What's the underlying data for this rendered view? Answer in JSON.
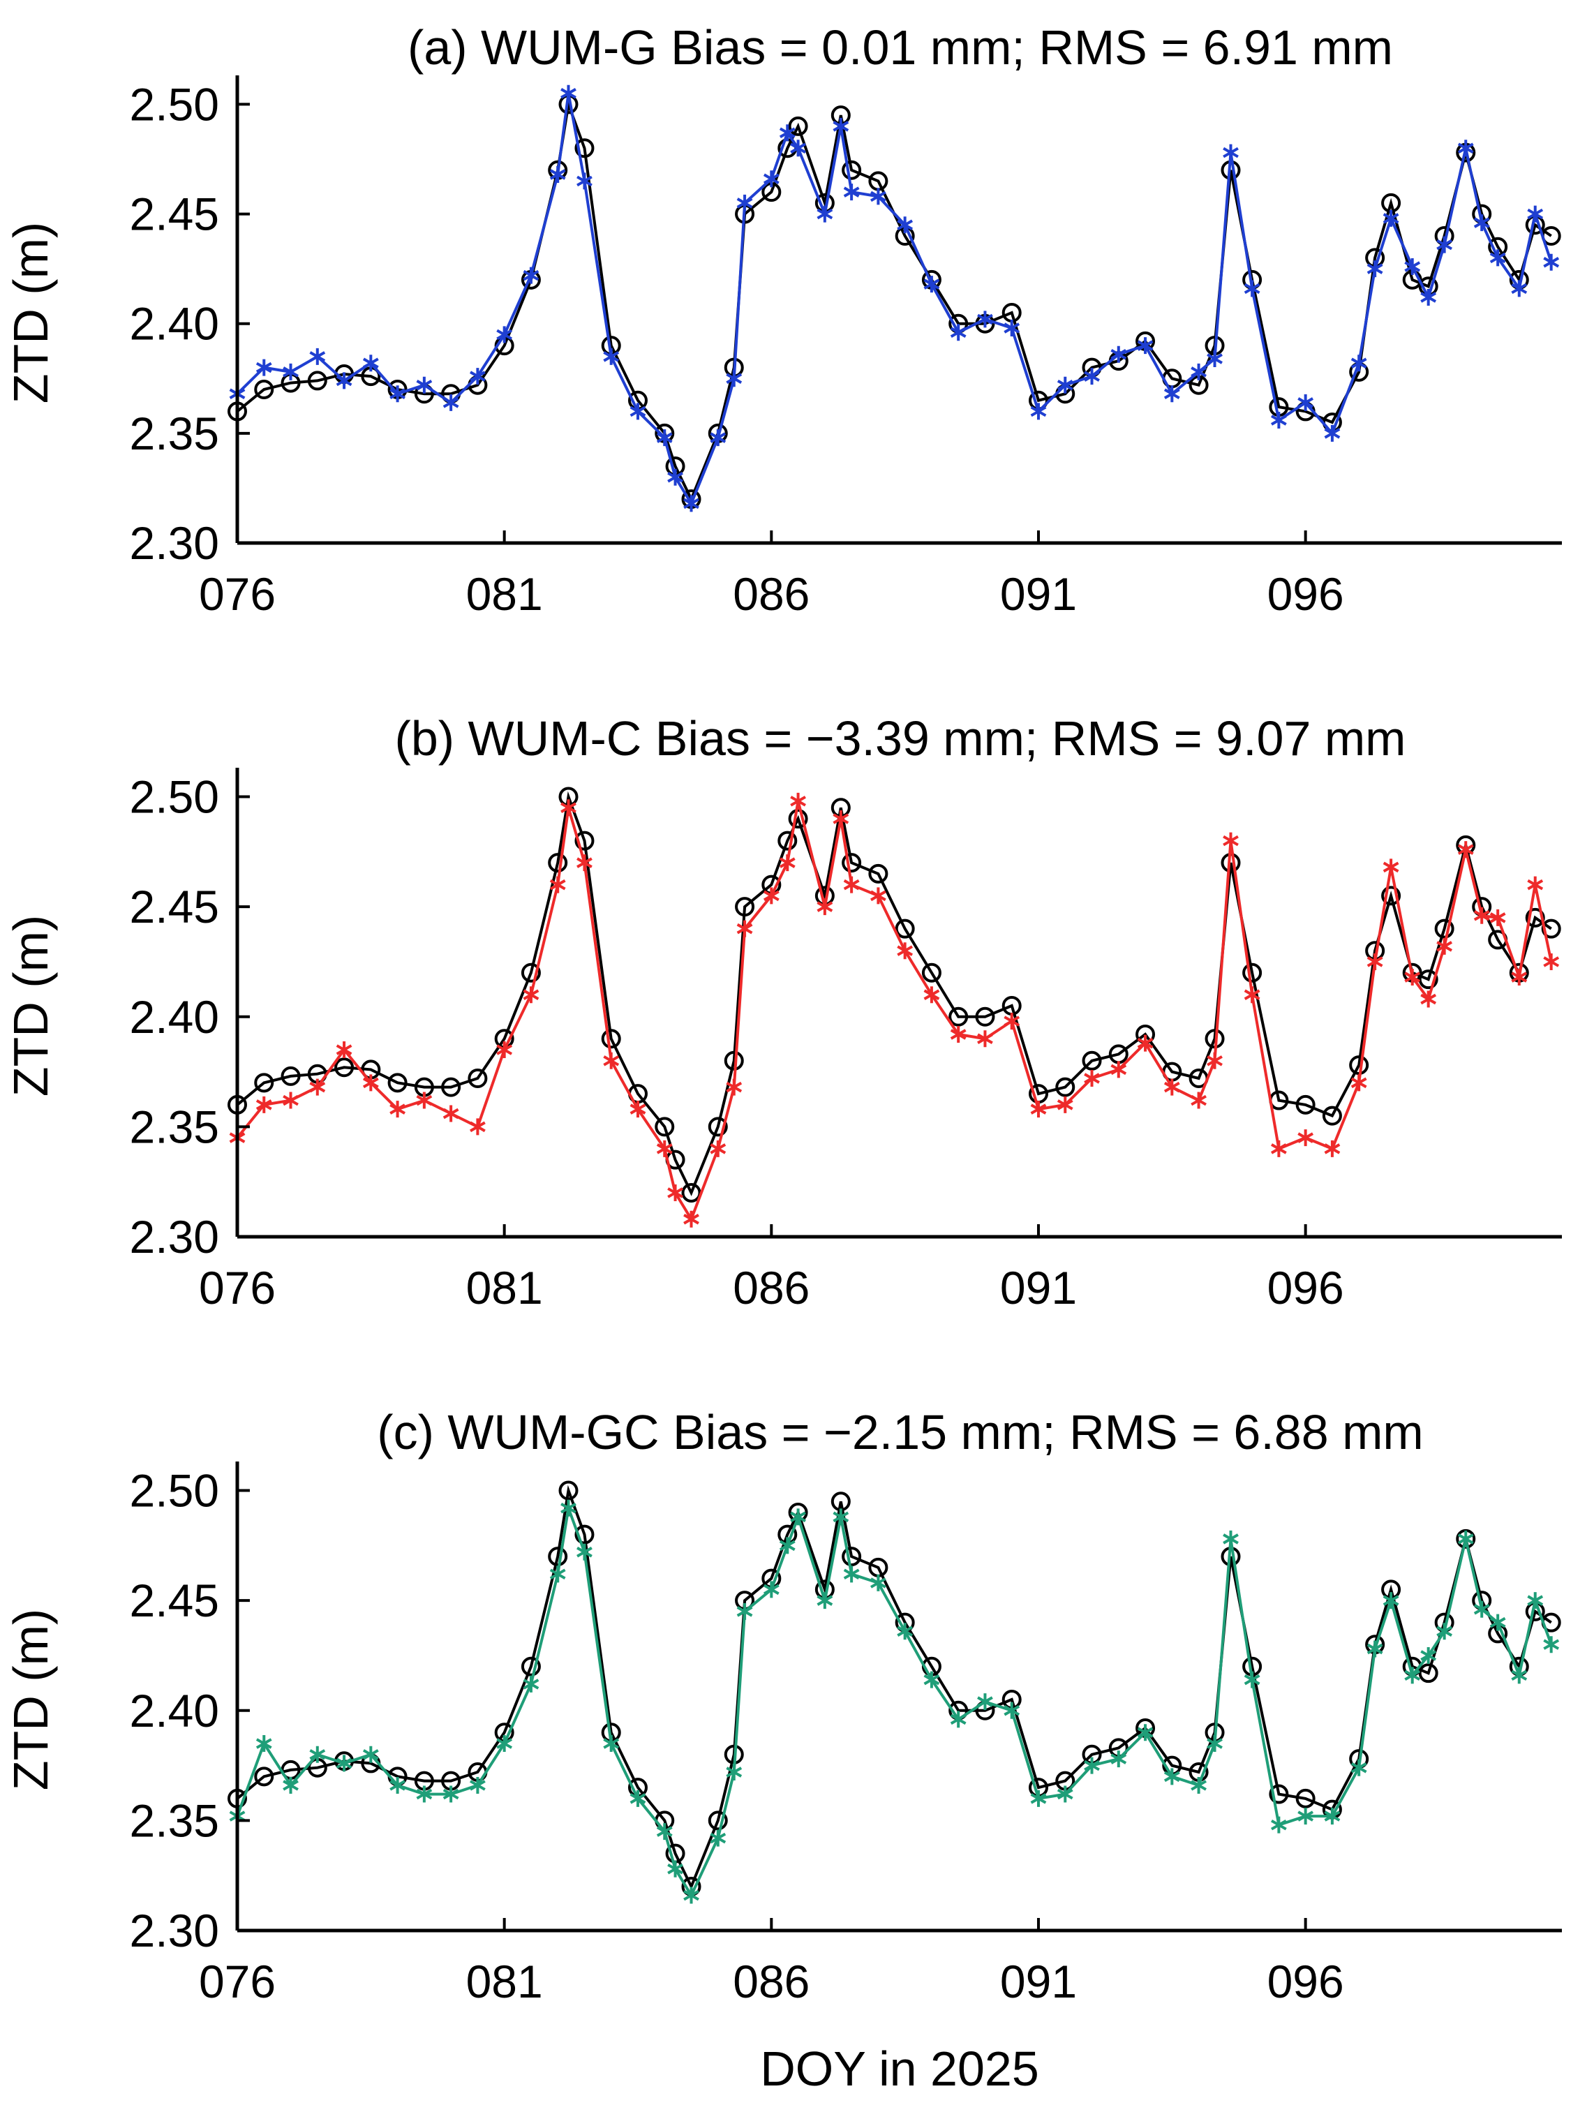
{
  "figure": {
    "xlabel_shared": "DOY in 2025"
  },
  "chart_data": [
    {
      "type": "line",
      "title": "(a) WUM-G Bias = 0.01 mm; RMS = 6.91 mm",
      "xlabel": "",
      "ylabel": "ZTD (m)",
      "xlim": [
        76,
        100.8
      ],
      "ylim": [
        2.3,
        2.51
      ],
      "xticks": [
        76,
        81,
        86,
        91,
        96
      ],
      "xtick_labels": [
        "076",
        "081",
        "086",
        "091",
        "096"
      ],
      "yticks": [
        2.3,
        2.35,
        2.4,
        2.45,
        2.5
      ],
      "ytick_labels": [
        "2.30",
        "2.35",
        "2.40",
        "2.45",
        "2.50"
      ],
      "grid": false,
      "series_colors": [
        "#000000",
        "#1f3fd1"
      ],
      "series": [
        {
          "name": "",
          "marker": "circle",
          "color": "#000000",
          "x": [
            76.0,
            76.5,
            77.0,
            77.5,
            78.0,
            78.5,
            79.0,
            79.5,
            80.0,
            80.5,
            81.0,
            81.5,
            82.0,
            82.2,
            82.5,
            83.0,
            83.5,
            84.0,
            84.2,
            84.5,
            85.0,
            85.3,
            85.5,
            86.0,
            86.3,
            86.5,
            87.0,
            87.3,
            87.5,
            88.0,
            88.5,
            89.0,
            89.5,
            90.0,
            90.5,
            91.0,
            91.5,
            92.0,
            92.5,
            93.0,
            93.5,
            94.0,
            94.3,
            94.6,
            95.0,
            95.5,
            96.0,
            96.5,
            97.0,
            97.3,
            97.6,
            98.0,
            98.3,
            98.6,
            99.0,
            99.3,
            99.6,
            100.0,
            100.3,
            100.6
          ],
          "y": [
            2.36,
            2.37,
            2.373,
            2.374,
            2.377,
            2.376,
            2.37,
            2.368,
            2.368,
            2.372,
            2.39,
            2.42,
            2.47,
            2.5,
            2.48,
            2.39,
            2.365,
            2.35,
            2.335,
            2.32,
            2.35,
            2.38,
            2.45,
            2.46,
            2.48,
            2.49,
            2.455,
            2.495,
            2.47,
            2.465,
            2.44,
            2.42,
            2.4,
            2.4,
            2.405,
            2.365,
            2.368,
            2.38,
            2.383,
            2.392,
            2.375,
            2.372,
            2.39,
            2.47,
            2.42,
            2.362,
            2.36,
            2.355,
            2.378,
            2.43,
            2.455,
            2.42,
            2.417,
            2.44,
            2.478,
            2.45,
            2.435,
            2.42,
            2.445,
            2.44
          ]
        },
        {
          "name": "",
          "marker": "asterisk",
          "color": "#1f3fd1",
          "x": [
            76.0,
            76.5,
            77.0,
            77.5,
            78.0,
            78.5,
            79.0,
            79.5,
            80.0,
            80.5,
            81.0,
            81.5,
            82.0,
            82.2,
            82.5,
            83.0,
            83.5,
            84.0,
            84.2,
            84.5,
            85.0,
            85.3,
            85.5,
            86.0,
            86.3,
            86.5,
            87.0,
            87.3,
            87.5,
            88.0,
            88.5,
            89.0,
            89.5,
            90.0,
            90.5,
            91.0,
            91.5,
            92.0,
            92.5,
            93.0,
            93.5,
            94.0,
            94.3,
            94.6,
            95.0,
            95.5,
            96.0,
            96.5,
            97.0,
            97.3,
            97.6,
            98.0,
            98.3,
            98.6,
            99.0,
            99.3,
            99.6,
            100.0,
            100.3,
            100.6
          ],
          "y": [
            2.368,
            2.38,
            2.378,
            2.385,
            2.374,
            2.382,
            2.368,
            2.372,
            2.364,
            2.376,
            2.395,
            2.422,
            2.468,
            2.505,
            2.465,
            2.385,
            2.36,
            2.348,
            2.33,
            2.318,
            2.348,
            2.375,
            2.455,
            2.466,
            2.487,
            2.48,
            2.45,
            2.49,
            2.46,
            2.458,
            2.445,
            2.418,
            2.396,
            2.402,
            2.398,
            2.36,
            2.372,
            2.376,
            2.386,
            2.39,
            2.368,
            2.378,
            2.384,
            2.478,
            2.416,
            2.356,
            2.364,
            2.35,
            2.382,
            2.425,
            2.448,
            2.426,
            2.412,
            2.436,
            2.48,
            2.446,
            2.43,
            2.416,
            2.45,
            2.428
          ]
        }
      ]
    },
    {
      "type": "line",
      "title": "(b) WUM-C Bias = −3.39 mm; RMS = 9.07 mm",
      "xlabel": "",
      "ylabel": "ZTD (m)",
      "xlim": [
        76,
        100.8
      ],
      "ylim": [
        2.3,
        2.51
      ],
      "xticks": [
        76,
        81,
        86,
        91,
        96
      ],
      "xtick_labels": [
        "076",
        "081",
        "086",
        "091",
        "096"
      ],
      "yticks": [
        2.3,
        2.35,
        2.4,
        2.45,
        2.5
      ],
      "ytick_labels": [
        "2.30",
        "2.35",
        "2.40",
        "2.45",
        "2.50"
      ],
      "grid": false,
      "series_colors": [
        "#000000",
        "#ee2a2a"
      ],
      "series": [
        {
          "name": "",
          "marker": "circle",
          "color": "#000000",
          "x": [
            76.0,
            76.5,
            77.0,
            77.5,
            78.0,
            78.5,
            79.0,
            79.5,
            80.0,
            80.5,
            81.0,
            81.5,
            82.0,
            82.2,
            82.5,
            83.0,
            83.5,
            84.0,
            84.2,
            84.5,
            85.0,
            85.3,
            85.5,
            86.0,
            86.3,
            86.5,
            87.0,
            87.3,
            87.5,
            88.0,
            88.5,
            89.0,
            89.5,
            90.0,
            90.5,
            91.0,
            91.5,
            92.0,
            92.5,
            93.0,
            93.5,
            94.0,
            94.3,
            94.6,
            95.0,
            95.5,
            96.0,
            96.5,
            97.0,
            97.3,
            97.6,
            98.0,
            98.3,
            98.6,
            99.0,
            99.3,
            99.6,
            100.0,
            100.3,
            100.6
          ],
          "y": [
            2.36,
            2.37,
            2.373,
            2.374,
            2.377,
            2.376,
            2.37,
            2.368,
            2.368,
            2.372,
            2.39,
            2.42,
            2.47,
            2.5,
            2.48,
            2.39,
            2.365,
            2.35,
            2.335,
            2.32,
            2.35,
            2.38,
            2.45,
            2.46,
            2.48,
            2.49,
            2.455,
            2.495,
            2.47,
            2.465,
            2.44,
            2.42,
            2.4,
            2.4,
            2.405,
            2.365,
            2.368,
            2.38,
            2.383,
            2.392,
            2.375,
            2.372,
            2.39,
            2.47,
            2.42,
            2.362,
            2.36,
            2.355,
            2.378,
            2.43,
            2.455,
            2.42,
            2.417,
            2.44,
            2.478,
            2.45,
            2.435,
            2.42,
            2.445,
            2.44
          ]
        },
        {
          "name": "",
          "marker": "asterisk",
          "color": "#ee2a2a",
          "x": [
            76.0,
            76.5,
            77.0,
            77.5,
            78.0,
            78.5,
            79.0,
            79.5,
            80.0,
            80.5,
            81.0,
            81.5,
            82.0,
            82.2,
            82.5,
            83.0,
            83.5,
            84.0,
            84.2,
            84.5,
            85.0,
            85.3,
            85.5,
            86.0,
            86.3,
            86.5,
            87.0,
            87.3,
            87.5,
            88.0,
            88.5,
            89.0,
            89.5,
            90.0,
            90.5,
            91.0,
            91.5,
            92.0,
            92.5,
            93.0,
            93.5,
            94.0,
            94.3,
            94.6,
            95.0,
            95.5,
            96.0,
            96.5,
            97.0,
            97.3,
            97.6,
            98.0,
            98.3,
            98.6,
            99.0,
            99.3,
            99.6,
            100.0,
            100.3,
            100.6
          ],
          "y": [
            2.345,
            2.36,
            2.362,
            2.368,
            2.385,
            2.37,
            2.358,
            2.362,
            2.356,
            2.35,
            2.385,
            2.41,
            2.46,
            2.495,
            2.47,
            2.38,
            2.358,
            2.34,
            2.32,
            2.308,
            2.34,
            2.368,
            2.44,
            2.455,
            2.47,
            2.498,
            2.45,
            2.49,
            2.46,
            2.455,
            2.43,
            2.41,
            2.392,
            2.39,
            2.398,
            2.358,
            2.36,
            2.372,
            2.376,
            2.388,
            2.368,
            2.362,
            2.38,
            2.48,
            2.41,
            2.34,
            2.345,
            2.34,
            2.37,
            2.425,
            2.468,
            2.418,
            2.408,
            2.432,
            2.476,
            2.446,
            2.445,
            2.418,
            2.46,
            2.425
          ]
        }
      ]
    },
    {
      "type": "line",
      "title": "(c) WUM-GC Bias = −2.15 mm; RMS = 6.88 mm",
      "xlabel": "DOY in 2025",
      "ylabel": "ZTD (m)",
      "xlim": [
        76,
        100.8
      ],
      "ylim": [
        2.3,
        2.51
      ],
      "xticks": [
        76,
        81,
        86,
        91,
        96
      ],
      "xtick_labels": [
        "076",
        "081",
        "086",
        "091",
        "096"
      ],
      "yticks": [
        2.3,
        2.35,
        2.4,
        2.45,
        2.5
      ],
      "ytick_labels": [
        "2.30",
        "2.35",
        "2.40",
        "2.45",
        "2.50"
      ],
      "grid": false,
      "series_colors": [
        "#000000",
        "#1f9e78"
      ],
      "series": [
        {
          "name": "",
          "marker": "circle",
          "color": "#000000",
          "x": [
            76.0,
            76.5,
            77.0,
            77.5,
            78.0,
            78.5,
            79.0,
            79.5,
            80.0,
            80.5,
            81.0,
            81.5,
            82.0,
            82.2,
            82.5,
            83.0,
            83.5,
            84.0,
            84.2,
            84.5,
            85.0,
            85.3,
            85.5,
            86.0,
            86.3,
            86.5,
            87.0,
            87.3,
            87.5,
            88.0,
            88.5,
            89.0,
            89.5,
            90.0,
            90.5,
            91.0,
            91.5,
            92.0,
            92.5,
            93.0,
            93.5,
            94.0,
            94.3,
            94.6,
            95.0,
            95.5,
            96.0,
            96.5,
            97.0,
            97.3,
            97.6,
            98.0,
            98.3,
            98.6,
            99.0,
            99.3,
            99.6,
            100.0,
            100.3,
            100.6
          ],
          "y": [
            2.36,
            2.37,
            2.373,
            2.374,
            2.377,
            2.376,
            2.37,
            2.368,
            2.368,
            2.372,
            2.39,
            2.42,
            2.47,
            2.5,
            2.48,
            2.39,
            2.365,
            2.35,
            2.335,
            2.32,
            2.35,
            2.38,
            2.45,
            2.46,
            2.48,
            2.49,
            2.455,
            2.495,
            2.47,
            2.465,
            2.44,
            2.42,
            2.4,
            2.4,
            2.405,
            2.365,
            2.368,
            2.38,
            2.383,
            2.392,
            2.375,
            2.372,
            2.39,
            2.47,
            2.42,
            2.362,
            2.36,
            2.355,
            2.378,
            2.43,
            2.455,
            2.42,
            2.417,
            2.44,
            2.478,
            2.45,
            2.435,
            2.42,
            2.445,
            2.44
          ]
        },
        {
          "name": "",
          "marker": "asterisk",
          "color": "#1f9e78",
          "x": [
            76.0,
            76.5,
            77.0,
            77.5,
            78.0,
            78.5,
            79.0,
            79.5,
            80.0,
            80.5,
            81.0,
            81.5,
            82.0,
            82.2,
            82.5,
            83.0,
            83.5,
            84.0,
            84.2,
            84.5,
            85.0,
            85.3,
            85.5,
            86.0,
            86.3,
            86.5,
            87.0,
            87.3,
            87.5,
            88.0,
            88.5,
            89.0,
            89.5,
            90.0,
            90.5,
            91.0,
            91.5,
            92.0,
            92.5,
            93.0,
            93.5,
            94.0,
            94.3,
            94.6,
            95.0,
            95.5,
            96.0,
            96.5,
            97.0,
            97.3,
            97.6,
            98.0,
            98.3,
            98.6,
            99.0,
            99.3,
            99.6,
            100.0,
            100.3,
            100.6
          ],
          "y": [
            2.352,
            2.385,
            2.366,
            2.38,
            2.376,
            2.38,
            2.366,
            2.362,
            2.362,
            2.366,
            2.385,
            2.412,
            2.462,
            2.492,
            2.472,
            2.385,
            2.36,
            2.345,
            2.328,
            2.316,
            2.342,
            2.372,
            2.445,
            2.455,
            2.475,
            2.488,
            2.45,
            2.488,
            2.462,
            2.458,
            2.436,
            2.414,
            2.396,
            2.404,
            2.4,
            2.36,
            2.362,
            2.375,
            2.378,
            2.39,
            2.37,
            2.366,
            2.385,
            2.478,
            2.414,
            2.348,
            2.352,
            2.352,
            2.374,
            2.428,
            2.45,
            2.416,
            2.425,
            2.436,
            2.478,
            2.446,
            2.44,
            2.416,
            2.45,
            2.43
          ]
        }
      ]
    }
  ]
}
